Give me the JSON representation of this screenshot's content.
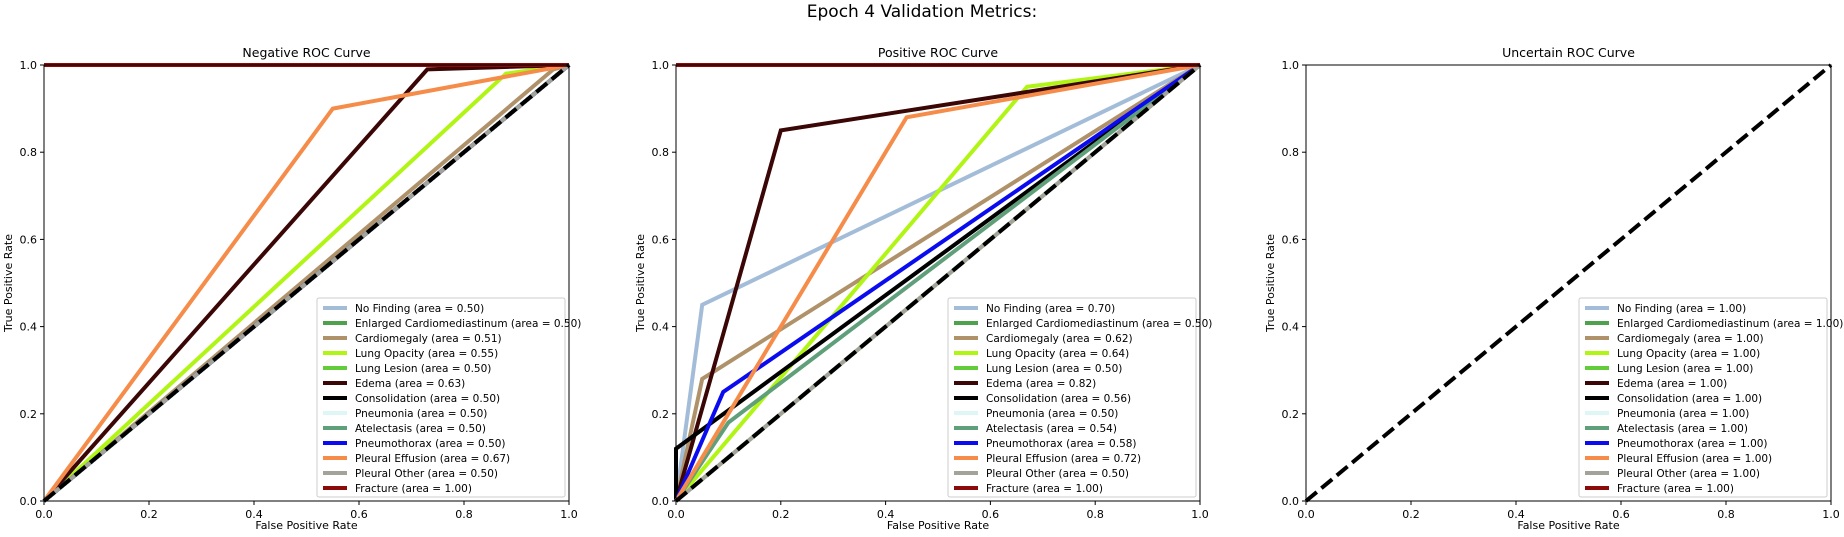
{
  "figure": {
    "title": "Epoch 4 Validation Metrics:"
  },
  "colors": {
    "No Finding": "#a3bdd9",
    "Enlarged Cardiomediastinum": "#4ea24e",
    "Cardiomegaly": "#b0926a",
    "Lung Opacity": "#b0f514",
    "Lung Lesion": "#62cc3a",
    "Edema": "#3a0606",
    "Consolidation": "#000000",
    "Pneumonia": "#dff6f6",
    "Atelectasis": "#5f9f7a",
    "Pneumothorax": "#0b0bf0",
    "Pleural Effusion": "#f58c4a",
    "Pleural Other": "#a3a39a",
    "Fracture": "#8b0b0b",
    "chance_line": "#000000"
  },
  "chart_data": [
    {
      "type": "line",
      "title": "Negative ROC Curve",
      "xlabel": "False Positive Rate",
      "ylabel": "True Positive Rate",
      "xlim": [
        0,
        1
      ],
      "ylim": [
        0,
        1
      ],
      "xticks": [
        "0.0",
        "0.2",
        "0.4",
        "0.6",
        "0.8",
        "1.0"
      ],
      "yticks": [
        "0.0",
        "0.2",
        "0.4",
        "0.6",
        "0.8",
        "1.0"
      ],
      "grid": false,
      "legend_position": "lower-right",
      "chance_line": [
        [
          0,
          0
        ],
        [
          1,
          1
        ]
      ],
      "series": [
        {
          "name": "No Finding",
          "label": "No Finding (area = 0.50)",
          "x": [
            0,
            1,
            1
          ],
          "y": [
            0,
            1,
            1
          ]
        },
        {
          "name": "Enlarged Cardiomediastinum",
          "label": "Enlarged Cardiomediastinum (area = 0.50)",
          "x": [
            0,
            1,
            1
          ],
          "y": [
            0,
            1,
            1
          ]
        },
        {
          "name": "Cardiomegaly",
          "label": "Cardiomegaly (area = 0.51)",
          "x": [
            0,
            0.97,
            1
          ],
          "y": [
            0,
            0.99,
            1
          ]
        },
        {
          "name": "Lung Opacity",
          "label": "Lung Opacity (area = 0.55)",
          "x": [
            0,
            0.88,
            1
          ],
          "y": [
            0,
            0.98,
            1
          ]
        },
        {
          "name": "Lung Lesion",
          "label": "Lung Lesion (area = 0.50)",
          "x": [
            0,
            1,
            1
          ],
          "y": [
            0,
            1,
            1
          ]
        },
        {
          "name": "Edema",
          "label": "Edema (area = 0.63)",
          "x": [
            0,
            0.73,
            1
          ],
          "y": [
            0,
            0.99,
            1
          ]
        },
        {
          "name": "Consolidation",
          "label": "Consolidation (area = 0.50)",
          "x": [
            0,
            1,
            1
          ],
          "y": [
            0,
            1,
            1
          ]
        },
        {
          "name": "Pneumonia",
          "label": "Pneumonia (area = 0.50)",
          "x": [
            0,
            1,
            1
          ],
          "y": [
            0,
            1,
            1
          ]
        },
        {
          "name": "Atelectasis",
          "label": "Atelectasis (area = 0.50)",
          "x": [
            0,
            1,
            1
          ],
          "y": [
            0,
            1,
            1
          ]
        },
        {
          "name": "Pneumothorax",
          "label": "Pneumothorax (area = 0.50)",
          "x": [
            0,
            1,
            1
          ],
          "y": [
            0,
            1,
            1
          ]
        },
        {
          "name": "Pleural Effusion",
          "label": "Pleural Effusion (area = 0.67)",
          "x": [
            0,
            0.55,
            1
          ],
          "y": [
            0,
            0.9,
            1
          ]
        },
        {
          "name": "Pleural Other",
          "label": "Pleural Other (area = 0.50)",
          "x": [
            0,
            1,
            1
          ],
          "y": [
            0,
            1,
            1
          ]
        },
        {
          "name": "Fracture",
          "label": "Fracture (area = 1.00)",
          "x": [
            0,
            1
          ],
          "y": [
            1,
            1
          ]
        }
      ]
    },
    {
      "type": "line",
      "title": "Positive ROC Curve",
      "xlabel": "False Positive Rate",
      "ylabel": "True Positive Rate",
      "xlim": [
        0,
        1
      ],
      "ylim": [
        0,
        1
      ],
      "xticks": [
        "0.0",
        "0.2",
        "0.4",
        "0.6",
        "0.8",
        "1.0"
      ],
      "yticks": [
        "0.0",
        "0.2",
        "0.4",
        "0.6",
        "0.8",
        "1.0"
      ],
      "grid": false,
      "legend_position": "lower-right",
      "chance_line": [
        [
          0,
          0
        ],
        [
          1,
          1
        ]
      ],
      "series": [
        {
          "name": "No Finding",
          "label": "No Finding (area = 0.70)",
          "x": [
            0,
            0.05,
            1
          ],
          "y": [
            0,
            0.45,
            1
          ]
        },
        {
          "name": "Enlarged Cardiomediastinum",
          "label": "Enlarged Cardiomediastinum (area = 0.50)",
          "x": [
            0,
            1,
            1
          ],
          "y": [
            0,
            1,
            1
          ]
        },
        {
          "name": "Cardiomegaly",
          "label": "Cardiomegaly (area = 0.62)",
          "x": [
            0,
            0.05,
            1
          ],
          "y": [
            0,
            0.28,
            1
          ]
        },
        {
          "name": "Lung Opacity",
          "label": "Lung Opacity (area = 0.64)",
          "x": [
            0,
            0.67,
            1
          ],
          "y": [
            0,
            0.95,
            1
          ]
        },
        {
          "name": "Lung Lesion",
          "label": "Lung Lesion (area = 0.50)",
          "x": [
            0,
            1,
            1
          ],
          "y": [
            0,
            1,
            1
          ]
        },
        {
          "name": "Edema",
          "label": "Edema (area = 0.82)",
          "x": [
            0,
            0.2,
            1
          ],
          "y": [
            0,
            0.85,
            1
          ]
        },
        {
          "name": "Consolidation",
          "label": "Consolidation (area = 0.56)",
          "x": [
            0,
            0,
            1
          ],
          "y": [
            0,
            0.12,
            1
          ]
        },
        {
          "name": "Pneumonia",
          "label": "Pneumonia (area = 0.50)",
          "x": [
            0,
            1,
            1
          ],
          "y": [
            0,
            1,
            1
          ]
        },
        {
          "name": "Atelectasis",
          "label": "Atelectasis (area = 0.54)",
          "x": [
            0,
            0.1,
            1
          ],
          "y": [
            0,
            0.18,
            1
          ]
        },
        {
          "name": "Pneumothorax",
          "label": "Pneumothorax (area = 0.58)",
          "x": [
            0,
            0.09,
            1
          ],
          "y": [
            0,
            0.25,
            1
          ]
        },
        {
          "name": "Pleural Effusion",
          "label": "Pleural Effusion (area = 0.72)",
          "x": [
            0,
            0.44,
            1
          ],
          "y": [
            0,
            0.88,
            1
          ]
        },
        {
          "name": "Pleural Other",
          "label": "Pleural Other (area = 0.50)",
          "x": [
            0,
            1,
            1
          ],
          "y": [
            0,
            1,
            1
          ]
        },
        {
          "name": "Fracture",
          "label": "Fracture (area = 1.00)",
          "x": [
            0,
            1
          ],
          "y": [
            1,
            1
          ]
        }
      ]
    },
    {
      "type": "line",
      "title": "Uncertain ROC Curve",
      "xlabel": "False Positive Rate",
      "ylabel": "True Positive Rate",
      "xlim": [
        0,
        1
      ],
      "ylim": [
        0,
        1
      ],
      "xticks": [
        "0.0",
        "0.2",
        "0.4",
        "0.6",
        "0.8",
        "1.0"
      ],
      "yticks": [
        "0.0",
        "0.2",
        "0.4",
        "0.6",
        "0.8",
        "1.0"
      ],
      "grid": false,
      "legend_position": "lower-right",
      "chance_line": [
        [
          0,
          0
        ],
        [
          1,
          1
        ]
      ],
      "series": [
        {
          "name": "No Finding",
          "label": "No Finding (area = 1.00)",
          "x": [],
          "y": []
        },
        {
          "name": "Enlarged Cardiomediastinum",
          "label": "Enlarged Cardiomediastinum (area = 1.00)",
          "x": [],
          "y": []
        },
        {
          "name": "Cardiomegaly",
          "label": "Cardiomegaly (area = 1.00)",
          "x": [],
          "y": []
        },
        {
          "name": "Lung Opacity",
          "label": "Lung Opacity (area = 1.00)",
          "x": [],
          "y": []
        },
        {
          "name": "Lung Lesion",
          "label": "Lung Lesion (area = 1.00)",
          "x": [],
          "y": []
        },
        {
          "name": "Edema",
          "label": "Edema (area = 1.00)",
          "x": [],
          "y": []
        },
        {
          "name": "Consolidation",
          "label": "Consolidation (area = 1.00)",
          "x": [],
          "y": []
        },
        {
          "name": "Pneumonia",
          "label": "Pneumonia (area = 1.00)",
          "x": [],
          "y": []
        },
        {
          "name": "Atelectasis",
          "label": "Atelectasis (area = 1.00)",
          "x": [],
          "y": []
        },
        {
          "name": "Pneumothorax",
          "label": "Pneumothorax (area = 1.00)",
          "x": [],
          "y": []
        },
        {
          "name": "Pleural Effusion",
          "label": "Pleural Effusion (area = 1.00)",
          "x": [],
          "y": []
        },
        {
          "name": "Pleural Other",
          "label": "Pleural Other (area = 1.00)",
          "x": [],
          "y": []
        },
        {
          "name": "Fracture",
          "label": "Fracture (area = 1.00)",
          "x": [],
          "y": []
        }
      ]
    }
  ]
}
